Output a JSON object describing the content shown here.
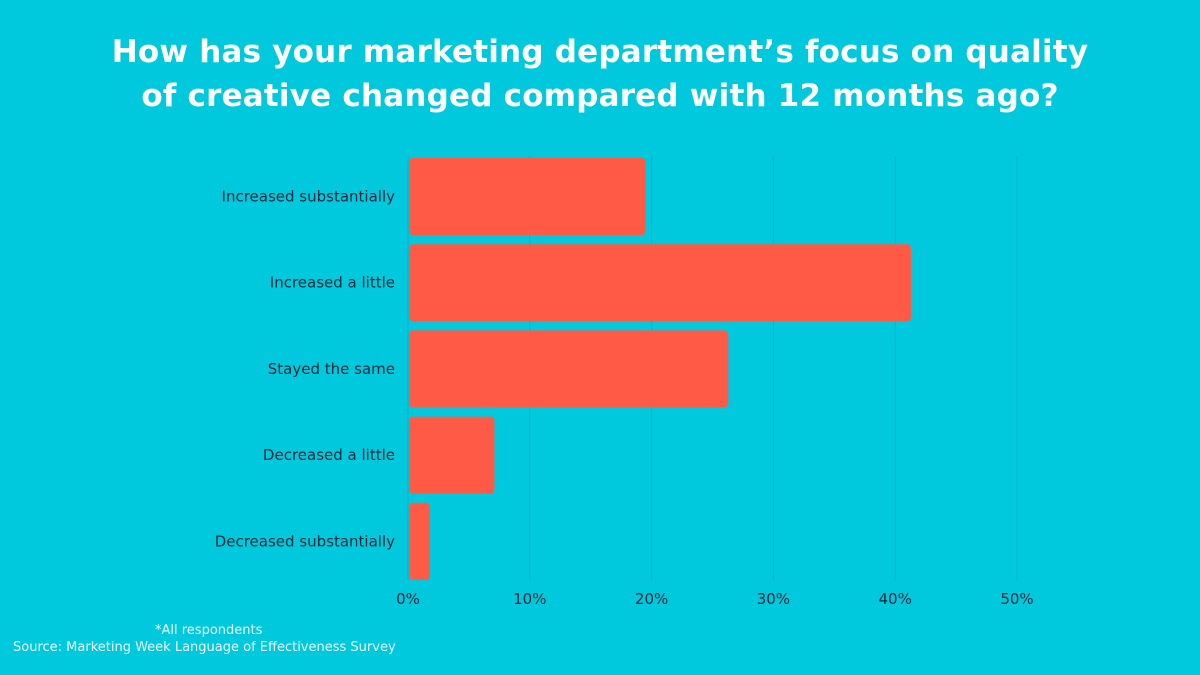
{
  "chart_data": {
    "type": "bar",
    "orientation": "horizontal",
    "title": "How has your marketing department’s focus on quality of creative changed compared with 12 months ago?",
    "title_lines": [
      "How has your marketing department’s focus on quality",
      "of creative changed compared with 12 months ago?"
    ],
    "categories": [
      "Increased substantially",
      "Increased a little",
      "Stayed the same",
      "Decreased a little",
      "Decreased substantially"
    ],
    "values": [
      19.5,
      41.3,
      26.3,
      7.1,
      1.8
    ],
    "unit": "%",
    "xlabel": "",
    "ylabel": "",
    "xlim": [
      0,
      50
    ],
    "x_ticks": [
      0,
      10,
      20,
      30,
      40,
      50
    ],
    "x_tick_labels": [
      "0%",
      "10%",
      "20%",
      "30%",
      "40%",
      "50%"
    ],
    "grid": "vertical",
    "legend": "none"
  },
  "footnotes": {
    "respondents": "*All respondents",
    "source": "Source: Marketing Week Language of Effectiveness Survey"
  },
  "colors": {
    "background": "#00C9DD",
    "bar": "#FF5A46",
    "gridline": "#00B3C6",
    "title_text": "#FFFFFF",
    "label_text": "#10293A"
  }
}
